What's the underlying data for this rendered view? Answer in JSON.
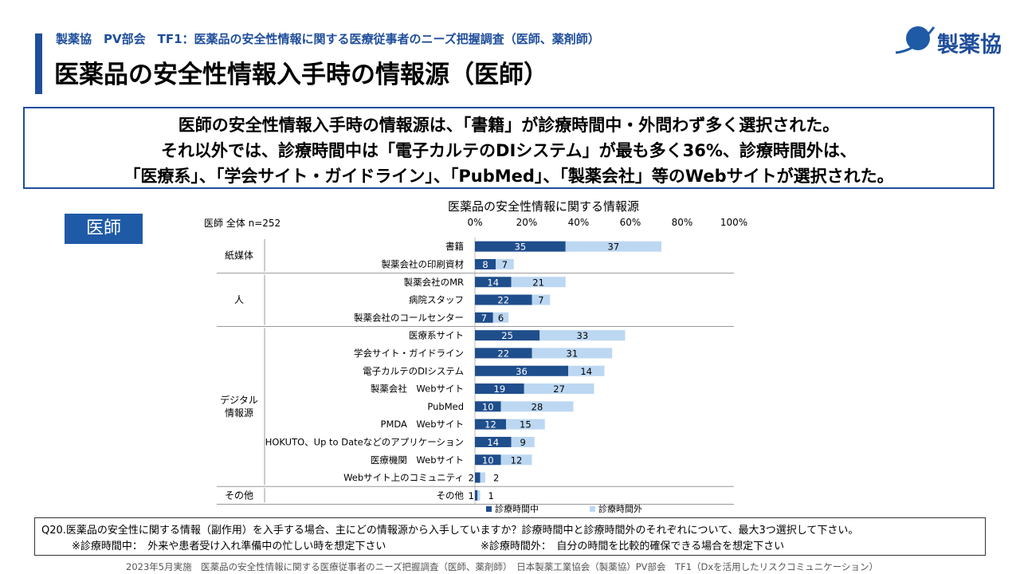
{
  "header": {
    "subtitle": "製薬協　PV部会　TF1：医薬品の安全性情報に関する医療従事者のニーズ把握調査（医師、薬剤師）",
    "title": "医薬品の安全性情報入手時の情報源（医師）",
    "logo_text": "製薬協",
    "accent_color": "#1f4e9c"
  },
  "summary": {
    "line1": "医師の安全性情報入手時の情報源は、「書籍」が診療時間中・外問わず多く選択された。",
    "line2": "それ以外では、診療時間中は「電子カルテのDIシステム」が最も多く36%、診療時間外は、",
    "line3": "「医療系」、「学会サイト・ガイドライン」、「PubMed」、「製薬会社」等のWebサイトが選択された。"
  },
  "badge": "医師",
  "chart_data": {
    "type": "bar",
    "orientation": "horizontal",
    "stacked": true,
    "title": "医薬品の安全性情報に関する情報源",
    "sample_label": "医師 全体 n=252",
    "xlim": [
      0,
      100
    ],
    "x_ticks": [
      "0%",
      "20%",
      "40%",
      "60%",
      "80%",
      "100%"
    ],
    "groups": [
      {
        "label": "紙媒体",
        "start": 0,
        "end": 1
      },
      {
        "label": "人",
        "start": 2,
        "end": 4
      },
      {
        "label": "デジタル\n情報源",
        "start": 5,
        "end": 13
      },
      {
        "label": "その他",
        "start": 14,
        "end": 14
      }
    ],
    "categories": [
      "書籍",
      "製薬会社の印刷資材",
      "製薬会社のMR",
      "病院スタッフ",
      "製薬会社のコールセンター",
      "医療系サイト",
      "学会サイト・ガイドライン",
      "電子カルテのDIシステム",
      "製薬会社　Webサイト",
      "PubMed",
      "PMDA　Webサイト",
      "HOKUTO、Up to Dateなどのアプリケーション",
      "医療機関　Webサイト",
      "Webサイト上のコミュニティ",
      "その他"
    ],
    "series": [
      {
        "name": "診療時間中",
        "color": "#1f4e8c",
        "values": [
          35,
          8,
          14,
          22,
          7,
          25,
          22,
          36,
          19,
          10,
          12,
          14,
          10,
          2,
          1
        ]
      },
      {
        "name": "診療時間外",
        "color": "#bcd7f2",
        "values": [
          37,
          7,
          21,
          7,
          6,
          33,
          31,
          14,
          27,
          28,
          15,
          9,
          12,
          2,
          1
        ]
      }
    ]
  },
  "question": {
    "q": "Q20.医薬品の安全性に関する情報（副作用）を入手する場合、主にどの情報源から入手していますか？診療時間中と診療時間外のそれぞれについて、最大3つ選択して下さい。",
    "note1": "※診療時間中：　外来や患者受け入れ準備中の忙しい時を想定下さい",
    "note2": "※診療時間外：　自分の時間を比較的確保できる場合を想定下さい"
  },
  "footer": "2023年5月実施　医薬品の安全性情報に関する医療従事者のニーズ把握調査（医師、薬剤師）　日本製薬工業協会（製薬協）PV部会　TF1（Dxを活用したリスクコミュニケーション）"
}
